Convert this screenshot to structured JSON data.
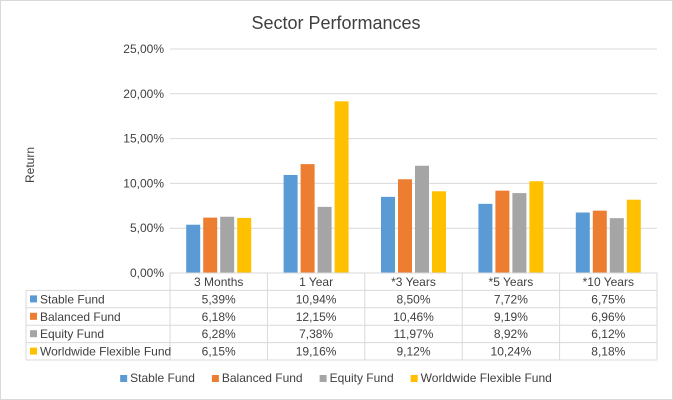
{
  "chart_data": {
    "type": "bar",
    "title": "Sector Performances",
    "ylabel": "Return",
    "xlabel": "",
    "categories": [
      "3 Months",
      "1 Year",
      "*3 Years",
      "*5 Years",
      "*10 Years"
    ],
    "ylim": [
      0,
      25
    ],
    "yticks": [
      0,
      5,
      10,
      15,
      20,
      25
    ],
    "ytick_labels": [
      "0,00%",
      "5,00%",
      "10,00%",
      "15,00%",
      "20,00%",
      "25,00%"
    ],
    "grid": true,
    "legend": "bottom",
    "series": [
      {
        "name": "Stable Fund",
        "color": "#5b9bd5",
        "values": [
          5.39,
          10.94,
          8.5,
          7.72,
          6.75
        ],
        "labels": [
          "5,39%",
          "10,94%",
          "8,50%",
          "7,72%",
          "6,75%"
        ]
      },
      {
        "name": "Balanced Fund",
        "color": "#ed7d31",
        "values": [
          6.18,
          12.15,
          10.46,
          9.19,
          6.96
        ],
        "labels": [
          "6,18%",
          "12,15%",
          "10,46%",
          "9,19%",
          "6,96%"
        ]
      },
      {
        "name": "Equity Fund",
        "color": "#a5a5a5",
        "values": [
          6.28,
          7.38,
          11.97,
          8.92,
          6.12
        ],
        "labels": [
          "6,28%",
          "7,38%",
          "11,97%",
          "8,92%",
          "6,12%"
        ]
      },
      {
        "name": "Worldwide Flexible Fund",
        "color": "#ffc000",
        "values": [
          6.15,
          19.16,
          9.12,
          10.24,
          8.18
        ],
        "labels": [
          "6,15%",
          "19,16%",
          "9,12%",
          "10,24%",
          "8,18%"
        ]
      }
    ]
  }
}
